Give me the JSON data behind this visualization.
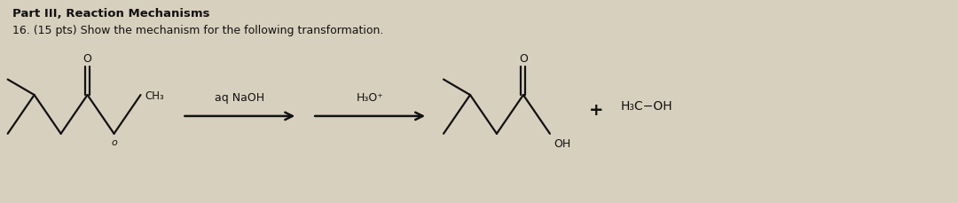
{
  "bg_color": "#d8d0be",
  "title_line1": "Part III, Reaction Mechanisms",
  "title_line2": "16. (15 pts) Show the mechanism for the following transformation.",
  "reagent1": "aq NaOH",
  "reagent2": "H₃O⁺",
  "plus_sign": "+",
  "product2": "H₃C−OH",
  "text_color": "#111111",
  "line_color": "#111111",
  "lw": 1.6,
  "title1_fs": 9.5,
  "title2_fs": 9.0,
  "label_fs": 9.0
}
